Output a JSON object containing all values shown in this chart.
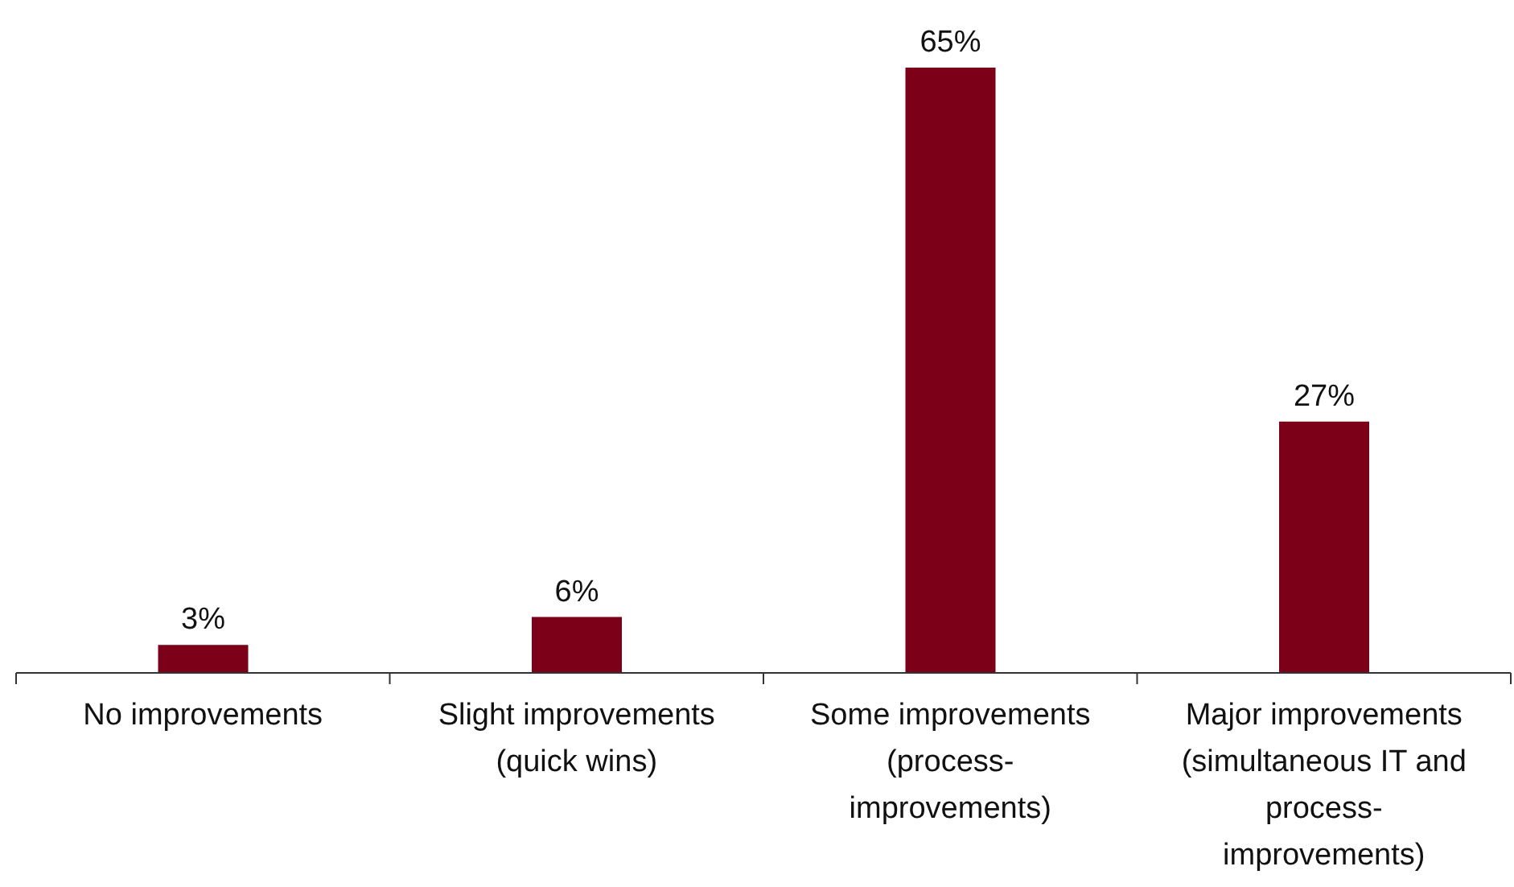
{
  "chart_data": {
    "type": "bar",
    "categories": [
      "No improvements",
      "Slight improvements (quick wins)",
      "Some improvements (process-improvements)",
      "Major improvements (simultaneous IT and process-improvements)"
    ],
    "values": [
      3,
      6,
      65,
      27
    ],
    "value_labels": [
      "3%",
      "6%",
      "65%",
      "27%"
    ],
    "color": "#7d0019",
    "grid": false,
    "legend": false
  }
}
